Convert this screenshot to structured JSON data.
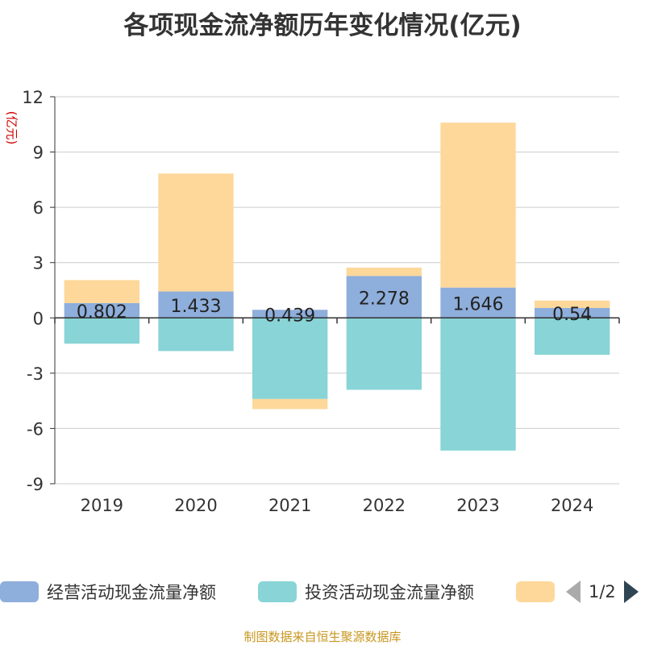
{
  "title": "各项现金流净额历年变化情况(亿元)",
  "unit_label": "(亿元)",
  "source_text": "制图数据来自恒生聚源数据库",
  "legend": {
    "items": [
      {
        "label": "经营活动现金流量净额",
        "color": "#8eaedb"
      },
      {
        "label": "投资活动现金流量净额",
        "color": "#88d4d6"
      },
      {
        "label": "",
        "color": "#fdd89a"
      }
    ],
    "page_text": "1/2"
  },
  "chart_data": {
    "type": "bar",
    "stacked": true,
    "categories": [
      "2019",
      "2020",
      "2021",
      "2022",
      "2023",
      "2024"
    ],
    "ylim": [
      -9,
      12
    ],
    "yticks": [
      -9,
      -6,
      -3,
      0,
      3,
      6,
      9,
      12
    ],
    "ylabel": "(亿元)",
    "grid": true,
    "series": [
      {
        "name": "经营活动现金流量净额",
        "color": "#8eaedb",
        "values": [
          0.802,
          1.433,
          0.439,
          2.278,
          1.646,
          0.54
        ],
        "labels": [
          "0.802",
          "1.433",
          "0.439",
          "2.278",
          "1.646",
          "0.54"
        ]
      },
      {
        "name": "投资活动现金流量净额",
        "color": "#88d4d6",
        "values": [
          -1.4,
          -1.8,
          -4.4,
          -3.9,
          -7.2,
          -2.0
        ]
      },
      {
        "color": "#fdd89a",
        "values": [
          1.25,
          6.4,
          -0.55,
          0.45,
          8.95,
          0.4
        ]
      }
    ]
  }
}
